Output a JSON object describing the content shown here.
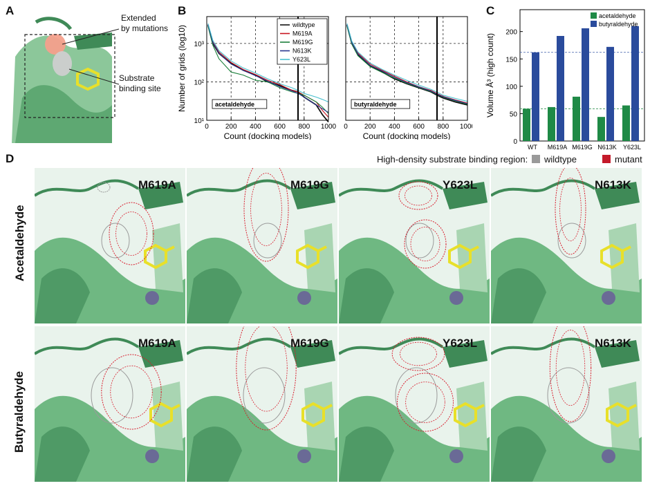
{
  "panels": {
    "A": {
      "label": "A",
      "annotation_top": [
        "Extended",
        "by mutations"
      ],
      "annotation_bottom": [
        "Substrate",
        "binding site"
      ]
    },
    "B": {
      "label": "B"
    },
    "C": {
      "label": "C"
    },
    "D": {
      "label": "D",
      "legend_title": "High-density substrate binding region:",
      "legend_wildtype": "wildtype",
      "legend_mutant": "mutant",
      "row_labels": [
        "Acetaldehyde",
        "Butyraldehyde"
      ],
      "columns": [
        "M619A",
        "M619G",
        "Y623L",
        "N613K"
      ]
    }
  },
  "colors": {
    "protein": "#6fb882",
    "protein_dark": "#3f8a57",
    "ligand": "#e8e02a",
    "wildtype_mesh": "#9a9a9a",
    "mutant_mesh": "#d81c2c",
    "acetaldehyde_bar": "#1f8a46",
    "butyraldehyde_bar": "#2a4b9c"
  },
  "chart_data": [
    {
      "type": "line",
      "box_label": "acetaldehyde",
      "xlabel": "Count (docking models)",
      "ylabel": "Number of grids (log10)",
      "xlim": [
        0,
        1000
      ],
      "ylim": [
        10,
        5000
      ],
      "log_y": true,
      "xticks": [
        0,
        200,
        400,
        600,
        800,
        1000
      ],
      "yticks": [
        "10¹",
        "10²",
        "10³"
      ],
      "vline": 750,
      "legend": [
        "wildtype",
        "M619A",
        "M619G",
        "N613K",
        "Y623L"
      ],
      "series": [
        {
          "name": "wildtype",
          "color": "#111111",
          "x": [
            10,
            50,
            100,
            200,
            300,
            400,
            500,
            600,
            700,
            750,
            800,
            900,
            950,
            1000
          ],
          "y": [
            3000,
            1000,
            550,
            300,
            200,
            150,
            100,
            80,
            60,
            55,
            40,
            25,
            14,
            9
          ]
        },
        {
          "name": "M619A",
          "color": "#c8141e",
          "x": [
            10,
            50,
            100,
            200,
            300,
            400,
            500,
            600,
            700,
            750,
            800,
            900,
            950,
            1000
          ],
          "y": [
            3200,
            1100,
            600,
            320,
            210,
            155,
            110,
            85,
            60,
            55,
            45,
            30,
            18,
            12
          ]
        },
        {
          "name": "M619G",
          "color": "#1a7f3a",
          "x": [
            10,
            50,
            100,
            200,
            300,
            400,
            500,
            600,
            700,
            750,
            800,
            900,
            950,
            1000
          ],
          "y": [
            2800,
            900,
            400,
            180,
            150,
            110,
            100,
            70,
            55,
            50,
            45,
            30,
            22,
            15
          ]
        },
        {
          "name": "N613K",
          "color": "#27358f",
          "x": [
            10,
            50,
            100,
            200,
            300,
            400,
            500,
            600,
            700,
            750,
            800,
            900,
            950,
            1000
          ],
          "y": [
            3100,
            1050,
            560,
            290,
            200,
            145,
            105,
            75,
            58,
            50,
            40,
            25,
            20,
            16
          ]
        },
        {
          "name": "Y623L",
          "color": "#49c0cf",
          "x": [
            10,
            50,
            100,
            200,
            300,
            400,
            500,
            600,
            700,
            750,
            800,
            900,
            950,
            1000
          ],
          "y": [
            3300,
            1200,
            650,
            350,
            230,
            170,
            120,
            90,
            70,
            60,
            50,
            40,
            35,
            30
          ]
        }
      ]
    },
    {
      "type": "line",
      "box_label": "butyraldehyde",
      "xlabel": "Count (docking models)",
      "xlim": [
        0,
        1000
      ],
      "ylim": [
        10,
        5000
      ],
      "log_y": true,
      "xticks": [
        0,
        200,
        400,
        600,
        800,
        1000
      ],
      "vline": 750,
      "series": [
        {
          "name": "wildtype",
          "color": "#111111",
          "x": [
            10,
            50,
            100,
            200,
            300,
            400,
            500,
            600,
            700,
            750,
            800,
            900,
            1000
          ],
          "y": [
            3000,
            1000,
            500,
            260,
            180,
            120,
            90,
            70,
            55,
            45,
            38,
            30,
            25
          ]
        },
        {
          "name": "M619A",
          "color": "#c8141e",
          "x": [
            10,
            50,
            100,
            200,
            300,
            400,
            500,
            600,
            700,
            750,
            800,
            900,
            1000
          ],
          "y": [
            3200,
            1100,
            560,
            290,
            200,
            140,
            100,
            75,
            60,
            50,
            42,
            34,
            28
          ]
        },
        {
          "name": "M619G",
          "color": "#1a7f3a",
          "x": [
            10,
            50,
            100,
            200,
            300,
            400,
            500,
            600,
            700,
            750,
            800,
            900,
            1000
          ],
          "y": [
            2800,
            950,
            480,
            250,
            175,
            125,
            92,
            72,
            56,
            47,
            40,
            32,
            26
          ]
        },
        {
          "name": "N613K",
          "color": "#27358f",
          "x": [
            10,
            50,
            100,
            200,
            300,
            400,
            500,
            600,
            700,
            750,
            800,
            900,
            1000
          ],
          "y": [
            3100,
            1050,
            530,
            270,
            190,
            132,
            96,
            74,
            58,
            48,
            41,
            33,
            27
          ]
        },
        {
          "name": "Y623L",
          "color": "#49c0cf",
          "x": [
            10,
            50,
            100,
            200,
            300,
            400,
            500,
            600,
            700,
            750,
            800,
            900,
            1000
          ],
          "y": [
            3300,
            1150,
            600,
            310,
            210,
            150,
            110,
            82,
            64,
            54,
            45,
            37,
            31
          ]
        }
      ]
    },
    {
      "type": "bar",
      "ylabel": "Volume Å³ (high count)",
      "categories": [
        "WT",
        "M619A",
        "M619G",
        "N613K",
        "Y623L"
      ],
      "ylim": [
        0,
        240
      ],
      "yticks": [
        0,
        50,
        100,
        150,
        200
      ],
      "series": [
        {
          "name": "acetaldehyde",
          "color": "#1f8a46",
          "values": [
            59,
            62,
            81,
            44,
            65
          ]
        },
        {
          "name": "butyraldehyde",
          "color": "#2a4b9c",
          "values": [
            162,
            192,
            206,
            172,
            210
          ]
        }
      ],
      "reference_lines": [
        162,
        59
      ],
      "legend_position": "top-right"
    }
  ]
}
